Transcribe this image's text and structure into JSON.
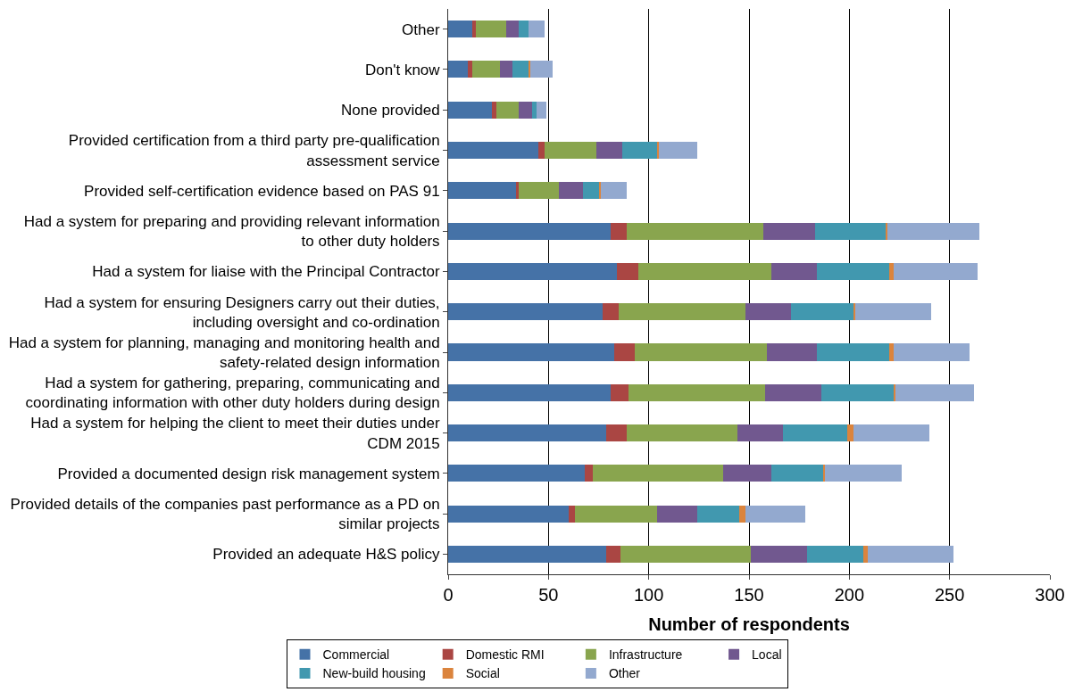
{
  "chart_data": {
    "type": "bar",
    "orientation": "horizontal",
    "stacked": true,
    "xlabel": "Number of respondents",
    "categories": [
      "Other",
      "Don't know",
      "None provided",
      "Provided certification from a third party pre-qualification assessment service",
      "Provided self-certification evidence based on PAS 91",
      "Had a system for preparing and providing relevant information to other duty holders",
      "Had a system for liaise with the Principal Contractor",
      "Had a system for ensuring Designers carry out their duties, including oversight and co-ordination",
      "Had a system for planning, managing and monitoring health and safety-related design information",
      "Had a system for gathering, preparing, communicating and coordinating information with other duty holders during design",
      "Had a system for helping the client to meet their duties under CDM 2015",
      "Provided a documented design risk management system",
      "Provided details of the companies past performance as a PD on similar projects",
      "Provided an adequate H&S policy"
    ],
    "series": [
      {
        "name": "Commercial",
        "color": "#4572a7",
        "values": [
          12,
          10,
          22,
          45,
          34,
          81,
          84,
          77,
          83,
          81,
          79,
          68,
          60,
          79
        ]
      },
      {
        "name": "Domestic RMI",
        "color": "#aa4643",
        "values": [
          2,
          2,
          2,
          3,
          1,
          8,
          11,
          8,
          10,
          9,
          10,
          4,
          3,
          7
        ]
      },
      {
        "name": "Infrastructure",
        "color": "#89a54e",
        "values": [
          15,
          14,
          11,
          26,
          20,
          68,
          66,
          63,
          66,
          68,
          55,
          65,
          41,
          65
        ]
      },
      {
        "name": "Local",
        "color": "#71588f",
        "values": [
          6,
          6,
          7,
          13,
          12,
          26,
          23,
          23,
          25,
          28,
          23,
          24,
          20,
          28
        ]
      },
      {
        "name": "New-build housing",
        "color": "#4198af",
        "values": [
          5,
          8,
          2,
          17,
          8,
          35,
          36,
          31,
          36,
          36,
          32,
          26,
          21,
          28
        ]
      },
      {
        "name": "Social",
        "color": "#db843d",
        "values": [
          0,
          1,
          0,
          1,
          1,
          1,
          2,
          1,
          2,
          1,
          3,
          1,
          3,
          2
        ]
      },
      {
        "name": "Other",
        "color": "#93a9cf",
        "values": [
          8,
          11,
          5,
          19,
          13,
          46,
          42,
          38,
          38,
          39,
          38,
          38,
          30,
          43
        ]
      }
    ],
    "xlim": [
      0,
      300
    ],
    "xticks": [
      0,
      50,
      100,
      150,
      200,
      250,
      300
    ],
    "grid": "x",
    "legend": "bottom"
  }
}
